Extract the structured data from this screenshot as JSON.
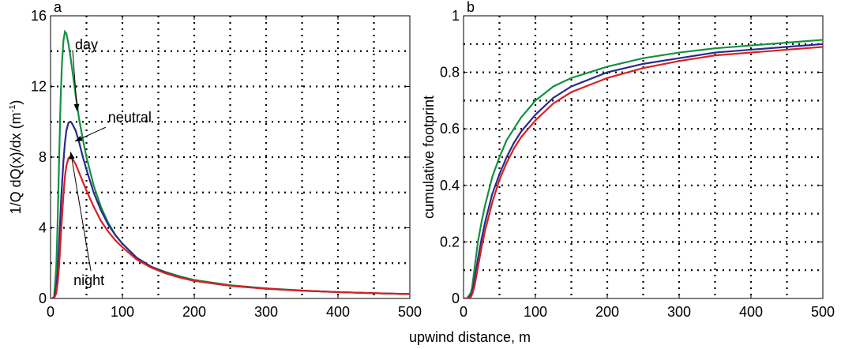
{
  "colors": {
    "day": "#149040",
    "neutral": "#2a2a8c",
    "night": "#d82020"
  },
  "xlabel": "upwind distance, m",
  "chart_data": [
    {
      "panel": "a",
      "type": "line",
      "ylabel": "1/Q dQ(x)/dx (m",
      "ylabel_sup": "-1",
      "ylabel_close": ")",
      "xlim": [
        0,
        500
      ],
      "ylim": [
        0,
        16
      ],
      "xticks": [
        0,
        100,
        200,
        300,
        400,
        500
      ],
      "yticks": [
        0,
        4,
        8,
        12,
        16
      ],
      "grid": true,
      "series": [
        {
          "name": "day",
          "color": "#149040",
          "x": [
            2,
            5,
            8,
            10,
            12,
            14,
            16,
            18,
            20,
            22,
            25,
            28,
            30,
            35,
            40,
            45,
            50,
            60,
            70,
            80,
            90,
            100,
            120,
            140,
            160,
            180,
            200,
            250,
            300,
            350,
            400,
            450,
            500
          ],
          "y": [
            0,
            0.1,
            1.8,
            4.5,
            8,
            11.2,
            13.4,
            14.6,
            15.1,
            15.0,
            14.4,
            13.6,
            13.0,
            11.5,
            10.1,
            9.0,
            8.0,
            6.4,
            5.2,
            4.3,
            3.6,
            3.1,
            2.3,
            1.8,
            1.5,
            1.25,
            1.05,
            0.75,
            0.57,
            0.45,
            0.36,
            0.3,
            0.25
          ]
        },
        {
          "name": "neutral",
          "color": "#2a2a8c",
          "x": [
            2,
            5,
            8,
            10,
            12,
            15,
            18,
            20,
            22,
            25,
            28,
            30,
            35,
            40,
            45,
            50,
            60,
            70,
            80,
            90,
            100,
            120,
            140,
            160,
            180,
            200,
            250,
            300,
            350,
            400,
            450,
            500
          ],
          "y": [
            0,
            0.05,
            0.6,
            1.6,
            3.2,
            5.8,
            7.8,
            8.8,
            9.5,
            9.95,
            10.0,
            9.9,
            9.5,
            8.8,
            8.0,
            7.3,
            6.0,
            5.0,
            4.2,
            3.6,
            3.1,
            2.3,
            1.8,
            1.45,
            1.2,
            1.0,
            0.72,
            0.55,
            0.44,
            0.36,
            0.3,
            0.25
          ]
        },
        {
          "name": "night",
          "color": "#d82020",
          "x": [
            2,
            5,
            8,
            10,
            12,
            15,
            18,
            20,
            22,
            25,
            28,
            30,
            35,
            40,
            45,
            50,
            60,
            70,
            80,
            90,
            100,
            120,
            140,
            160,
            180,
            200,
            250,
            300,
            350,
            400,
            450,
            500
          ],
          "y": [
            0,
            0.02,
            0.3,
            0.9,
            1.9,
            4.0,
            5.9,
            6.9,
            7.5,
            7.95,
            8.0,
            7.95,
            7.6,
            7.1,
            6.6,
            6.1,
            5.2,
            4.4,
            3.8,
            3.3,
            2.9,
            2.2,
            1.75,
            1.42,
            1.18,
            1.0,
            0.72,
            0.55,
            0.44,
            0.36,
            0.3,
            0.25
          ]
        }
      ],
      "annotations": [
        {
          "text": "day",
          "series": "day",
          "x": 34,
          "y": 14.1,
          "point_x": 37,
          "point_y": 10.6
        },
        {
          "text": "neutral",
          "series": "neutral",
          "x": 80,
          "y": 10.0,
          "point_x": 34,
          "point_y": 8.9
        },
        {
          "text": "night",
          "series": "night",
          "x": 32,
          "y": 0.75,
          "point_x": 28,
          "point_y": 8.3
        }
      ]
    },
    {
      "panel": "b",
      "type": "line",
      "ylabel": "cumulative footprint",
      "xlim": [
        0,
        500
      ],
      "ylim": [
        0,
        1
      ],
      "xticks": [
        0,
        100,
        200,
        300,
        400,
        500
      ],
      "yticks": [
        0,
        0.2,
        0.4,
        0.6,
        0.8,
        1
      ],
      "ytick_labels": [
        "0",
        "0.2",
        "0.4",
        "0.6",
        "0.8",
        "1"
      ],
      "grid": true,
      "series": [
        {
          "name": "day",
          "color": "#149040",
          "x": [
            0,
            5,
            10,
            12,
            15,
            20,
            25,
            30,
            40,
            50,
            60,
            70,
            80,
            100,
            125,
            150,
            200,
            250,
            300,
            350,
            400,
            450,
            500
          ],
          "y": [
            0,
            0,
            0.02,
            0.04,
            0.1,
            0.2,
            0.27,
            0.33,
            0.43,
            0.5,
            0.56,
            0.6,
            0.64,
            0.7,
            0.75,
            0.78,
            0.82,
            0.85,
            0.87,
            0.885,
            0.895,
            0.905,
            0.915
          ]
        },
        {
          "name": "neutral",
          "color": "#2a2a8c",
          "x": [
            0,
            5,
            10,
            12,
            15,
            20,
            25,
            30,
            40,
            50,
            60,
            70,
            80,
            100,
            125,
            150,
            200,
            250,
            300,
            350,
            400,
            450,
            500
          ],
          "y": [
            0,
            0,
            0.01,
            0.02,
            0.06,
            0.14,
            0.21,
            0.27,
            0.37,
            0.44,
            0.5,
            0.55,
            0.59,
            0.65,
            0.71,
            0.75,
            0.8,
            0.83,
            0.85,
            0.87,
            0.88,
            0.89,
            0.9
          ]
        },
        {
          "name": "night",
          "color": "#d82020",
          "x": [
            0,
            5,
            10,
            12,
            15,
            20,
            25,
            30,
            40,
            50,
            60,
            70,
            80,
            100,
            125,
            150,
            200,
            250,
            300,
            350,
            400,
            450,
            500
          ],
          "y": [
            0,
            0,
            0.005,
            0.015,
            0.04,
            0.11,
            0.18,
            0.24,
            0.34,
            0.42,
            0.48,
            0.53,
            0.57,
            0.63,
            0.69,
            0.73,
            0.78,
            0.815,
            0.84,
            0.86,
            0.87,
            0.88,
            0.89
          ]
        }
      ]
    }
  ]
}
